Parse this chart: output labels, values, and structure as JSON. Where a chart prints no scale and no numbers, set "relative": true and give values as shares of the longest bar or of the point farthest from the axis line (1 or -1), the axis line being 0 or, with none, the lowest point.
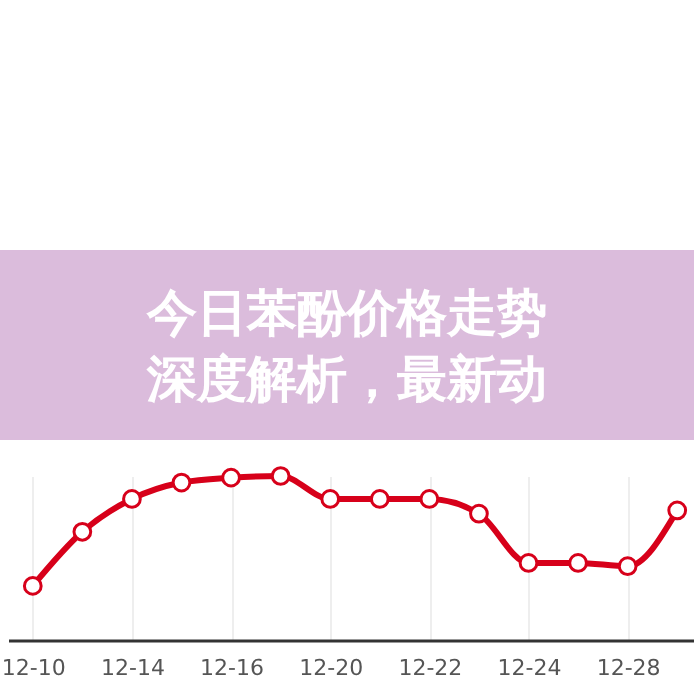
{
  "chart_data": {
    "type": "line",
    "title": "今日苯酚价格走势深度解析，最新动",
    "relative": true,
    "categories": [
      "12-10",
      null,
      "12-14",
      null,
      "12-16",
      null,
      "12-20",
      null,
      "12-22",
      null,
      "12-24",
      null,
      "12-28",
      null
    ],
    "series": [
      {
        "color": "#d7001a",
        "values": [
          0.33,
          0.66,
          0.86,
          0.96,
          0.99,
          1,
          0.86,
          0.86,
          0.86,
          0.77,
          0.47,
          0.47,
          0.45,
          0.79
        ]
      }
    ],
    "grid": "x",
    "marker": "circle",
    "line_style": "solid"
  }
}
